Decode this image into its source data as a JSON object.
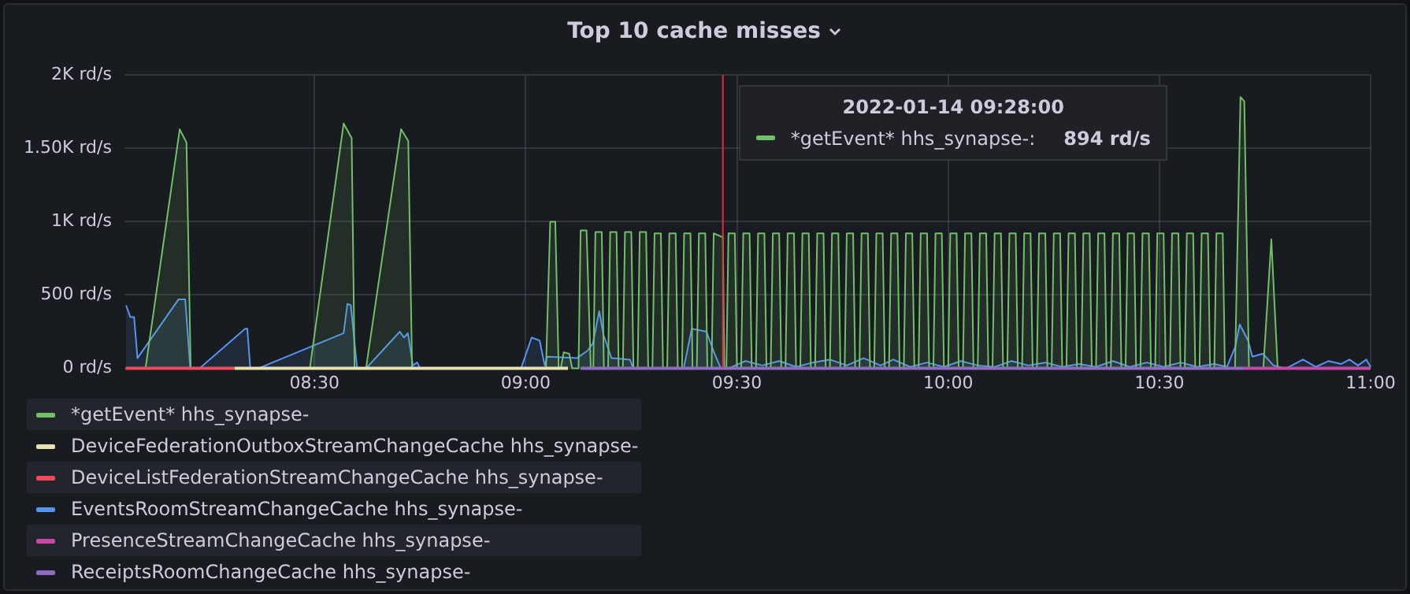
{
  "chart_data": {
    "type": "line",
    "title": "Top 10 cache misses",
    "xlim": [
      8.05,
      11.0
    ],
    "xticks": [
      {
        "value": 8.5,
        "label": "08:30"
      },
      {
        "value": 9,
        "label": "09:00"
      },
      {
        "value": 9.5,
        "label": "09:30"
      },
      {
        "value": 10,
        "label": "10:00"
      },
      {
        "value": 10.5,
        "label": "10:30"
      },
      {
        "value": 11,
        "label": "11:00"
      }
    ],
    "ylim": [
      0,
      2000
    ],
    "yticks": [
      {
        "value": 0,
        "label": "0 rd/s"
      },
      {
        "value": 500,
        "label": "500 rd/s"
      },
      {
        "value": 1000,
        "label": "1K rd/s"
      },
      {
        "value": 1500,
        "label": "1.50K rd/s"
      },
      {
        "value": 2000,
        "label": "2K rd/s"
      }
    ],
    "grid": true,
    "legend": "bottom",
    "marker": "none",
    "line_style": "solid",
    "ref_lines": [
      {
        "axis": "x",
        "value": 9.4667,
        "color": "#e02f44"
      }
    ],
    "annotations": [
      "2022-01-14 09:28:00",
      "*getEvent* hhs_synapse-:",
      "894 rd/s"
    ],
    "series": [
      {
        "name": "*getEvent* hhs_synapse-",
        "type": "area",
        "color": "#73bf69",
        "x": [
          8.1,
          8.181,
          8.197,
          8.207,
          8.489,
          8.569,
          8.588,
          8.595,
          8.622,
          8.705,
          8.722,
          8.731,
          9.048,
          9.058,
          9.07,
          9.078,
          9.083,
          9.09,
          9.103,
          9.11,
          9.125,
          9.13,
          9.144,
          9.154,
          9.16,
          9.165,
          9.18,
          9.185,
          9.195,
          9.2,
          9.215,
          9.22,
          9.23,
          9.235,
          9.25,
          9.255,
          9.265,
          9.27,
          9.285,
          9.29,
          9.3,
          9.305,
          9.32,
          9.325,
          9.335,
          9.34,
          9.355,
          9.36,
          9.37,
          9.375,
          9.39,
          9.395,
          9.405,
          9.41,
          9.425,
          9.43,
          9.44,
          9.445,
          9.4667,
          9.47,
          9.475,
          9.48,
          9.495,
          9.5,
          9.51,
          9.515,
          9.53,
          9.535,
          9.545,
          9.55,
          9.565,
          9.57,
          9.58,
          9.585,
          9.6,
          9.605,
          9.615,
          9.62,
          9.635,
          9.64,
          9.65,
          9.655,
          9.67,
          9.675,
          9.685,
          9.69,
          9.705,
          9.71,
          9.72,
          9.725,
          9.74,
          9.745,
          9.755,
          9.76,
          9.775,
          9.78,
          9.79,
          9.795,
          9.81,
          9.815,
          9.825,
          9.83,
          9.845,
          9.85,
          9.86,
          9.865,
          9.88,
          9.885,
          9.895,
          9.9,
          9.915,
          9.92,
          9.93,
          9.935,
          9.95,
          9.955,
          9.965,
          9.97,
          9.985,
          9.99,
          10.0,
          10.005,
          10.02,
          10.025,
          10.035,
          10.04,
          10.055,
          10.06,
          10.07,
          10.075,
          10.09,
          10.095,
          10.105,
          10.11,
          10.125,
          10.13,
          10.14,
          10.145,
          10.16,
          10.165,
          10.175,
          10.18,
          10.195,
          10.2,
          10.21,
          10.215,
          10.23,
          10.235,
          10.245,
          10.25,
          10.265,
          10.27,
          10.28,
          10.285,
          10.3,
          10.305,
          10.315,
          10.32,
          10.335,
          10.34,
          10.35,
          10.355,
          10.37,
          10.375,
          10.385,
          10.39,
          10.405,
          10.41,
          10.42,
          10.425,
          10.44,
          10.445,
          10.455,
          10.46,
          10.475,
          10.48,
          10.49,
          10.495,
          10.51,
          10.515,
          10.525,
          10.53,
          10.545,
          10.55,
          10.56,
          10.565,
          10.58,
          10.585,
          10.595,
          10.6,
          10.615,
          10.62,
          10.63,
          10.635,
          10.65,
          10.655,
          10.679,
          10.692,
          10.701,
          10.712,
          10.746,
          10.765,
          10.78,
          11.0
        ],
        "values": [
          0,
          1630,
          1540,
          0,
          0,
          1670,
          1570,
          0,
          0,
          1630,
          1550,
          0,
          0,
          1000,
          1000,
          0,
          0,
          110,
          100,
          0,
          0,
          940,
          940,
          0,
          0,
          930,
          930,
          0,
          0,
          930,
          930,
          0,
          0,
          930,
          930,
          0,
          0,
          930,
          930,
          0,
          0,
          920,
          920,
          0,
          0,
          920,
          920,
          0,
          0,
          920,
          920,
          0,
          0,
          920,
          920,
          0,
          0,
          920,
          894,
          0,
          0,
          920,
          920,
          0,
          0,
          920,
          920,
          0,
          0,
          920,
          920,
          0,
          0,
          920,
          920,
          0,
          0,
          920,
          920,
          0,
          0,
          920,
          920,
          0,
          0,
          920,
          920,
          0,
          0,
          920,
          920,
          0,
          0,
          920,
          920,
          0,
          0,
          920,
          920,
          0,
          0,
          920,
          920,
          0,
          0,
          920,
          920,
          0,
          0,
          920,
          920,
          0,
          0,
          920,
          920,
          0,
          0,
          920,
          920,
          0,
          0,
          920,
          920,
          0,
          0,
          920,
          920,
          0,
          0,
          920,
          920,
          0,
          0,
          920,
          920,
          0,
          0,
          920,
          920,
          0,
          0,
          920,
          920,
          0,
          0,
          920,
          920,
          0,
          0,
          920,
          920,
          0,
          0,
          920,
          920,
          0,
          0,
          920,
          920,
          0,
          0,
          920,
          920,
          0,
          0,
          920,
          920,
          0,
          0,
          920,
          920,
          0,
          0,
          920,
          920,
          0,
          0,
          920,
          920,
          0,
          0,
          920,
          920,
          0,
          0,
          920,
          920,
          0,
          0,
          920,
          920,
          0,
          0,
          920,
          920,
          0,
          0,
          1850,
          1820,
          0,
          0,
          880,
          0,
          0
        ]
      },
      {
        "name": "DeviceFederationOutboxStreamChangeCache hhs_synapse-",
        "type": "line",
        "color": "#e8e0b0",
        "x": [
          8.311,
          8.5,
          8.7,
          8.9,
          9.1
        ],
        "values": [
          0,
          0,
          0,
          0,
          0
        ]
      },
      {
        "name": "DeviceListFederationStreamChangeCache hhs_synapse-",
        "type": "line",
        "color": "#f2495c",
        "x": [
          8.053,
          8.311
        ],
        "values": [
          0,
          0
        ]
      },
      {
        "name": "EventsRoomStreamChangeCache hhs_synapse-",
        "type": "area",
        "color": "#5794f2",
        "x": [
          8.054,
          8.064,
          8.073,
          8.081,
          8.178,
          8.194,
          8.206,
          8.228,
          8.336,
          8.341,
          8.348,
          8.367,
          8.569,
          8.578,
          8.586,
          8.601,
          8.622,
          8.702,
          8.712,
          8.721,
          8.733,
          8.743,
          8.75,
          8.989,
          9.014,
          9.033,
          9.045,
          9.051,
          9.121,
          9.146,
          9.159,
          9.174,
          9.184,
          9.203,
          9.247,
          9.254,
          9.374,
          9.393,
          9.428,
          9.447,
          9.462,
          9.48,
          9.52,
          9.56,
          9.6,
          9.64,
          9.68,
          9.72,
          9.76,
          9.8,
          9.84,
          9.87,
          9.91,
          9.95,
          9.99,
          10.03,
          10.07,
          10.11,
          10.15,
          10.19,
          10.23,
          10.27,
          10.31,
          10.35,
          10.39,
          10.43,
          10.47,
          10.51,
          10.55,
          10.59,
          10.63,
          10.66,
          10.68,
          10.69,
          10.71,
          10.72,
          10.745,
          10.77,
          10.8,
          10.84,
          10.87,
          10.9,
          10.93,
          10.95,
          10.97,
          10.99,
          11.0
        ],
        "values": [
          430,
          350,
          350,
          70,
          470,
          470,
          0,
          0,
          270,
          270,
          0,
          0,
          240,
          440,
          430,
          0,
          0,
          250,
          210,
          240,
          20,
          40,
          0,
          0,
          210,
          190,
          20,
          80,
          70,
          120,
          170,
          390,
          230,
          70,
          60,
          0,
          0,
          270,
          250,
          100,
          0,
          0,
          50,
          20,
          50,
          10,
          40,
          60,
          20,
          70,
          20,
          60,
          10,
          40,
          10,
          50,
          20,
          10,
          50,
          20,
          40,
          10,
          30,
          10,
          50,
          10,
          40,
          10,
          40,
          10,
          30,
          10,
          150,
          300,
          190,
          80,
          100,
          20,
          0,
          60,
          10,
          50,
          30,
          60,
          20,
          60,
          10
        ]
      },
      {
        "name": "PresenceStreamChangeCache hhs_synapse-",
        "type": "line",
        "color": "#c848a8",
        "x": [
          10.7,
          11.0
        ],
        "values": [
          0,
          0
        ]
      },
      {
        "name": "ReceiptsRoomChangeCache hhs_synapse-",
        "type": "line",
        "color": "#8f6bbf",
        "x": [
          9.13,
          10.7
        ],
        "values": [
          0,
          0
        ]
      }
    ]
  }
}
